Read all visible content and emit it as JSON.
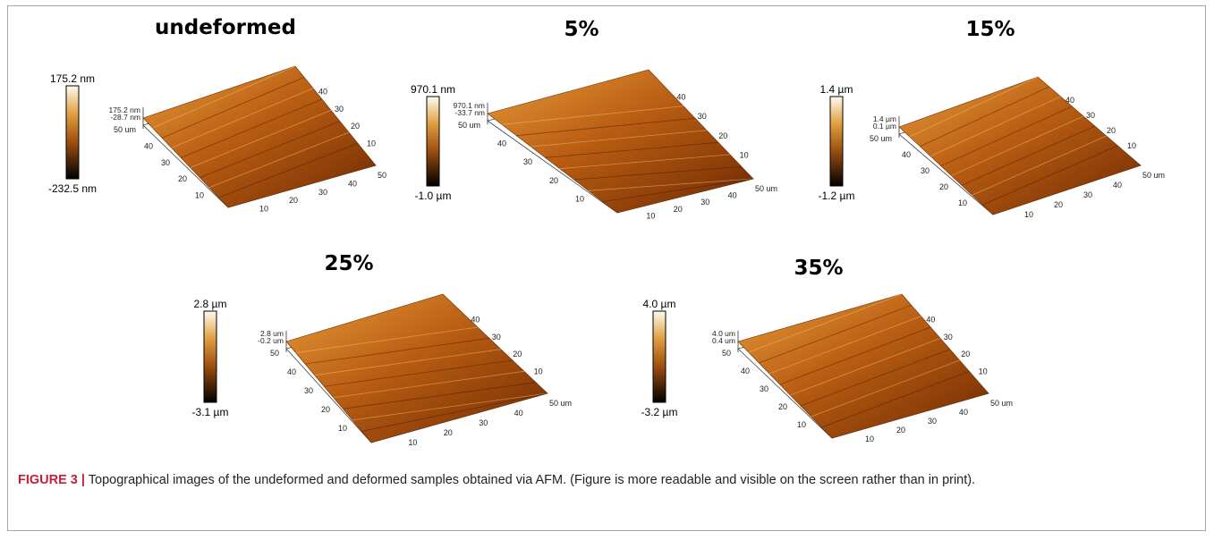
{
  "panels": [
    {
      "title": "undeformed",
      "scale_max": "175.2 nm",
      "scale_min": "-232.5 nm",
      "z_labels": [
        "175.2 nm",
        "-28.7 nm"
      ],
      "x_ticks": [
        "10",
        "20",
        "30",
        "40",
        "50"
      ],
      "y_ticks": [
        "50 um",
        "40",
        "30",
        "20",
        "10"
      ],
      "back_ticks": [
        "40",
        "30",
        "20",
        "10"
      ]
    },
    {
      "title": "5%",
      "scale_max": "970.1 nm",
      "scale_min": "-1.0 µm",
      "z_labels": [
        "970.1 nm",
        "-33.7 nm"
      ],
      "x_ticks": [
        "10",
        "20",
        "30",
        "40",
        "50 um"
      ],
      "y_ticks": [
        "50 um",
        "40",
        "30",
        "20",
        "10"
      ],
      "back_ticks": [
        "40",
        "30",
        "20",
        "10"
      ]
    },
    {
      "title": "15%",
      "scale_max": "1.4 µm",
      "scale_min": "-1.2 µm",
      "z_labels": [
        "1.4 µm",
        "0.1 µm"
      ],
      "x_ticks": [
        "10",
        "20",
        "30",
        "40",
        "50 um"
      ],
      "y_ticks": [
        "50 um",
        "40",
        "30",
        "20",
        "10"
      ],
      "back_ticks": [
        "40",
        "30",
        "20",
        "10"
      ]
    },
    {
      "title": "25%",
      "scale_max": "2.8 µm",
      "scale_min": "-3.1 µm",
      "z_labels": [
        "2.8 um",
        "-0.2 um"
      ],
      "x_ticks": [
        "10",
        "20",
        "30",
        "40",
        "50 um"
      ],
      "y_ticks": [
        "50",
        "40",
        "30",
        "20",
        "10"
      ],
      "back_ticks": [
        "40",
        "30",
        "20",
        "10"
      ]
    },
    {
      "title": "35%",
      "scale_max": "4.0 µm",
      "scale_min": "-3.2 µm",
      "z_labels": [
        "4.0 um",
        "0.4 um"
      ],
      "x_ticks": [
        "10",
        "20",
        "30",
        "40",
        "50 um"
      ],
      "y_ticks": [
        "50",
        "40",
        "30",
        "20",
        "10"
      ],
      "back_ticks": [
        "40",
        "30",
        "20",
        "10"
      ]
    }
  ],
  "caption": {
    "label": "FIGURE 3 |",
    "text": "Topographical images of the undeformed and deformed samples obtained via AFM. (Figure is more readable and visible on the screen rather than in print)."
  }
}
